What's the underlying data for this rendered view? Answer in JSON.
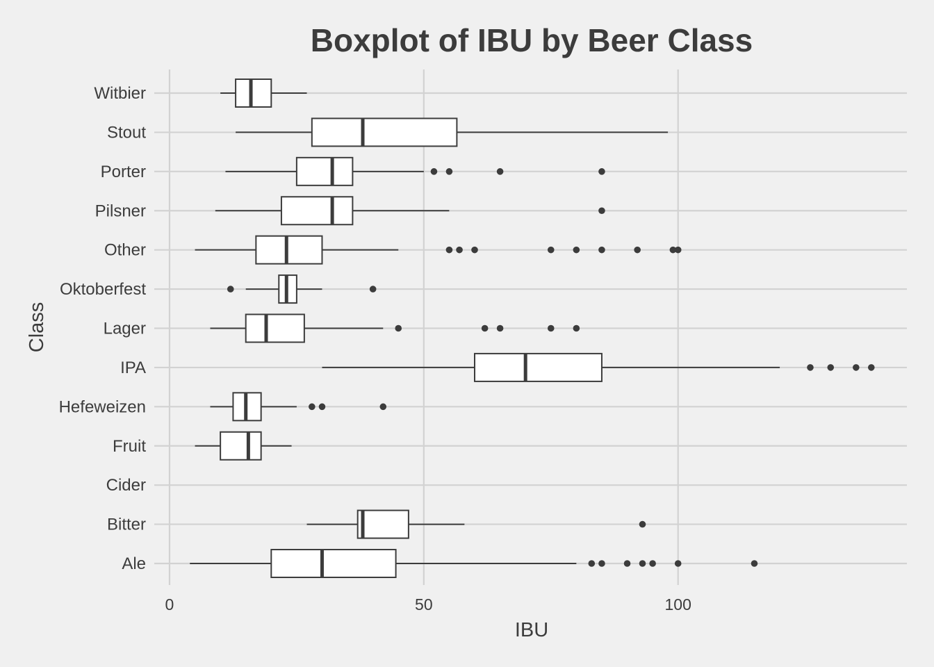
{
  "chart_data": {
    "type": "boxplot",
    "orientation": "horizontal",
    "title": "Boxplot of IBU by Beer Class",
    "xlabel": "IBU",
    "ylabel": "Class",
    "xlim": [
      -3,
      145
    ],
    "xticks": [
      0,
      50,
      100
    ],
    "grid": true,
    "legend": "none",
    "colors": {
      "background": "#f0f0f0",
      "grid": "#d2d2d2",
      "box_fill": "#ffffff",
      "ink": "#3c3c3c"
    },
    "categories": [
      "Ale",
      "Bitter",
      "Cider",
      "Fruit",
      "Hefeweizen",
      "IPA",
      "Lager",
      "Oktoberfest",
      "Other",
      "Pilsner",
      "Porter",
      "Stout",
      "Witbier"
    ],
    "boxes": [
      {
        "label": "Ale",
        "whisker_low": 4,
        "q1": 20,
        "median": 30,
        "q3": 44.5,
        "whisker_high": 80,
        "outliers": [
          83,
          85,
          90,
          93,
          95,
          100,
          115
        ]
      },
      {
        "label": "Bitter",
        "whisker_low": 27,
        "q1": 37,
        "median": 38,
        "q3": 47,
        "whisker_high": 58,
        "outliers": [
          93
        ]
      },
      {
        "label": "Cider"
      },
      {
        "label": "Fruit",
        "whisker_low": 5,
        "q1": 10,
        "median": 15.5,
        "q3": 18,
        "whisker_high": 24,
        "outliers": []
      },
      {
        "label": "Hefeweizen",
        "whisker_low": 8,
        "q1": 12.5,
        "median": 15,
        "q3": 18,
        "whisker_high": 25,
        "outliers": [
          28,
          30,
          42
        ]
      },
      {
        "label": "IPA",
        "whisker_low": 30,
        "q1": 60,
        "median": 70,
        "q3": 85,
        "whisker_high": 120,
        "outliers": [
          126,
          130,
          135,
          138
        ]
      },
      {
        "label": "Lager",
        "whisker_low": 8,
        "q1": 15,
        "median": 19,
        "q3": 26.5,
        "whisker_high": 42,
        "outliers": [
          45,
          62,
          65,
          75,
          80
        ]
      },
      {
        "label": "Oktoberfest",
        "whisker_low": 15,
        "q1": 21.5,
        "median": 23,
        "q3": 25,
        "whisker_high": 30,
        "outliers": [
          12,
          40
        ]
      },
      {
        "label": "Other",
        "whisker_low": 5,
        "q1": 17,
        "median": 23,
        "q3": 30,
        "whisker_high": 45,
        "outliers": [
          55,
          57,
          60,
          75,
          80,
          85,
          92,
          99,
          100
        ]
      },
      {
        "label": "Pilsner",
        "whisker_low": 9,
        "q1": 22,
        "median": 32,
        "q3": 36,
        "whisker_high": 55,
        "outliers": [
          85
        ]
      },
      {
        "label": "Porter",
        "whisker_low": 11,
        "q1": 25,
        "median": 32,
        "q3": 36,
        "whisker_high": 50,
        "outliers": [
          52,
          55,
          65,
          85
        ]
      },
      {
        "label": "Stout",
        "whisker_low": 13,
        "q1": 28,
        "median": 38,
        "q3": 56.5,
        "whisker_high": 98,
        "outliers": []
      },
      {
        "label": "Witbier",
        "whisker_low": 10,
        "q1": 13,
        "median": 16,
        "q3": 20,
        "whisker_high": 27,
        "outliers": []
      }
    ]
  }
}
